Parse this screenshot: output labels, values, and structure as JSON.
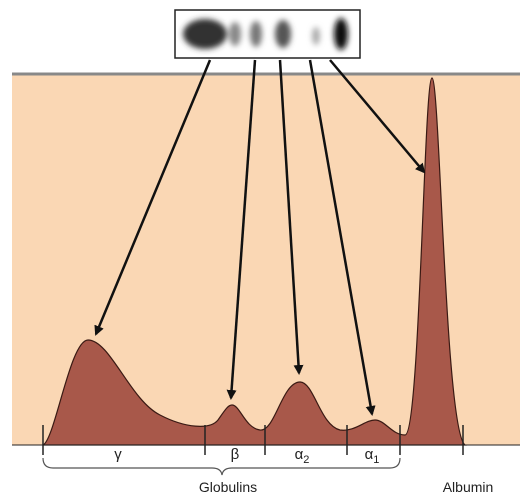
{
  "fractions": [
    {
      "symbol": "γ"
    },
    {
      "symbol": "β"
    },
    {
      "symbol": "α",
      "subscript": "2"
    },
    {
      "symbol": "α",
      "subscript": "1"
    }
  ],
  "groups": {
    "globulins": "Globulins",
    "albumin": "Albumin"
  }
}
